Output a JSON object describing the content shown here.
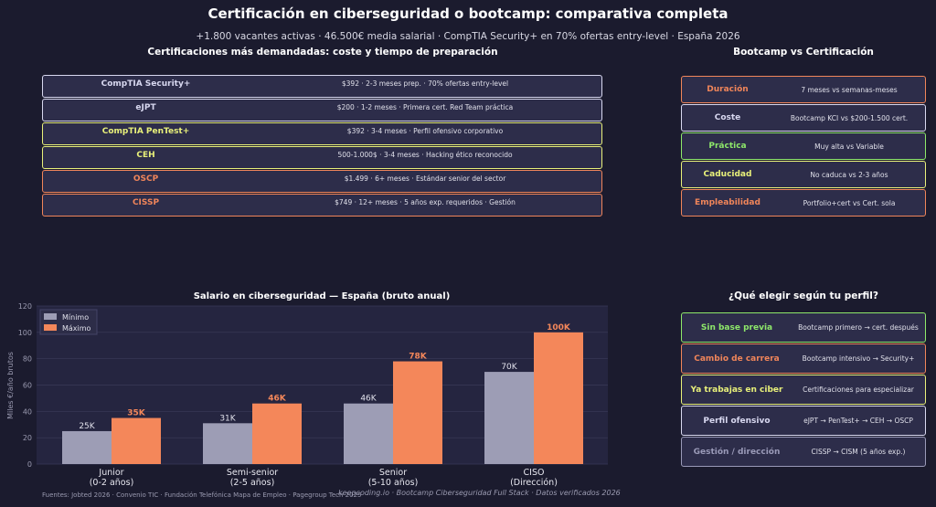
{
  "title": "Certificación en ciberseguridad o bootcamp: comparativa completa",
  "subtitle": "+1.800 vacantes activas · 46.500€ media salarial · CompTIA Security+ en 70% ofertas entry-level · España 2026",
  "certs": {
    "heading": "Certificaciones más demandadas: coste y tiempo de preparación",
    "items": [
      {
        "name": "CompTIA Security+",
        "detail": "$392 · 2-3 meses prep. · 70% ofertas entry-level",
        "color": "#d8d8f0"
      },
      {
        "name": "eJPT",
        "detail": "$200 · 1-2 meses · Primera cert. Red Team práctica",
        "color": "#d8d8f0"
      },
      {
        "name": "CompTIA PenTest+",
        "detail": "$392 · 3-4 meses · Perfil ofensivo corporativo",
        "color": "#e8f07a"
      },
      {
        "name": "CEH",
        "detail": "500-1.000$ · 3-4 meses · Hacking ético reconocido",
        "color": "#e8f07a"
      },
      {
        "name": "OSCP",
        "detail": "$1.499 · 6+ meses · Estándar senior del sector",
        "color": "#f0855a"
      },
      {
        "name": "CISSP",
        "detail": "$749 · 12+ meses · 5 años exp. requeridos · Gestión",
        "color": "#f0855a"
      }
    ]
  },
  "compare": {
    "heading": "Bootcamp vs Certificación",
    "items": [
      {
        "name": "Duración",
        "detail": "7 meses  vs  semanas-meses",
        "color": "#f0855a"
      },
      {
        "name": "Coste",
        "detail": "Bootcamp KCI  vs  $200-1.500 cert.",
        "color": "#d8d8f0"
      },
      {
        "name": "Práctica",
        "detail": "Muy alta  vs  Variable",
        "color": "#8ee86a"
      },
      {
        "name": "Caducidad",
        "detail": "No caduca  vs  2-3 años",
        "color": "#e8f07a"
      },
      {
        "name": "Empleabilidad",
        "detail": "Portfolio+cert  vs  Cert. sola",
        "color": "#f0855a"
      }
    ]
  },
  "profile": {
    "heading": "¿Qué elegir según tu perfil?",
    "items": [
      {
        "name": "Sin base previa",
        "detail": "Bootcamp primero → cert. después",
        "color": "#8ee86a"
      },
      {
        "name": "Cambio de carrera",
        "detail": "Bootcamp intensivo → Security+",
        "color": "#f0855a"
      },
      {
        "name": "Ya trabajas en ciber",
        "detail": "Certificaciones para especializar",
        "color": "#e8f07a"
      },
      {
        "name": "Perfil ofensivo",
        "detail": "eJPT → PenTest+ → CEH → OSCP",
        "color": "#d8d8f0"
      },
      {
        "name": "Gestión / dirección",
        "detail": "CISSP → CISM (5 años exp.)",
        "color": "#9a9ab8"
      }
    ]
  },
  "chart_data": {
    "type": "bar",
    "title": "Salario en ciberseguridad — España (bruto anual)",
    "ylabel": "Miles €/año brutos",
    "ylim": [
      0,
      120
    ],
    "yticks": [
      0,
      20,
      40,
      60,
      80,
      100,
      120
    ],
    "grid": true,
    "legend": "top-left",
    "categories": [
      [
        "Junior",
        "(0-2 años)"
      ],
      [
        "Semi-senior",
        "(2-5 años)"
      ],
      [
        "Senior",
        "(5-10 años)"
      ],
      [
        "CISO",
        "(Dirección)"
      ]
    ],
    "series": [
      {
        "name": "Mínimo",
        "values": [
          25,
          31,
          46,
          70
        ],
        "labels": [
          "25K",
          "31K",
          "46K",
          "70K"
        ],
        "color": "#9d9db5"
      },
      {
        "name": "Máximo",
        "values": [
          35,
          46,
          78,
          100
        ],
        "labels": [
          "35K",
          "46K",
          "78K",
          "100K"
        ],
        "color": "#f4875a"
      }
    ]
  },
  "footer": "Fuentes: Jobted 2026 · Convenio TIC · Fundación Telefónica Mapa de Empleo · Pagegroup Tech 2025",
  "brand": "keepcoding.io  ·  Bootcamp Ciberseguridad Full Stack  ·  Datos verificados 2026"
}
